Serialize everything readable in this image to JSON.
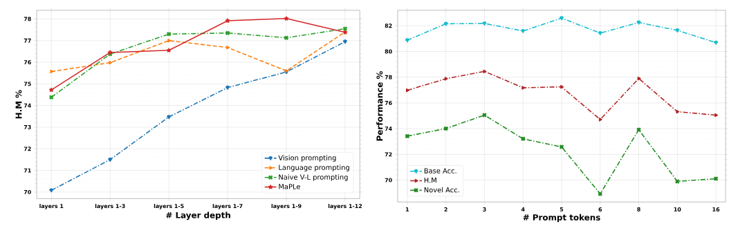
{
  "chart_data": [
    {
      "type": "line",
      "xlabel": "# Layer depth",
      "ylabel": "H.M %",
      "categories": [
        "layers 1",
        "layers 1-3",
        "layers 1-5",
        "layers 1-7",
        "layers 1-9",
        "layers 1-12"
      ],
      "series": [
        {
          "name": "Vision prompting",
          "color": "#1f77b4",
          "marker": "circle",
          "line_style": "dashdot",
          "values": [
            70.08,
            71.5,
            73.47,
            74.83,
            75.55,
            76.95
          ]
        },
        {
          "name": "Language prompting",
          "color": "#ff7f0e",
          "marker": "triangle",
          "line_style": "dashed",
          "values": [
            75.57,
            75.98,
            77.0,
            76.68,
            75.6,
            77.4
          ]
        },
        {
          "name": "Naive V-L prompting",
          "color": "#2ca02c",
          "marker": "cross",
          "line_style": "dashdot",
          "values": [
            74.38,
            76.38,
            77.3,
            77.35,
            77.13,
            77.55
          ]
        },
        {
          "name": "MaPLe",
          "color": "#d62728",
          "marker": "star",
          "line_style": "solid",
          "values": [
            74.72,
            76.45,
            76.55,
            77.92,
            78.02,
            77.38
          ]
        }
      ],
      "ylim": [
        69.7,
        78.4
      ],
      "yticks": [
        70,
        71,
        72,
        73,
        74,
        75,
        76,
        77,
        78
      ],
      "grid": true,
      "legend": "bottom right"
    },
    {
      "type": "line",
      "xlabel": "# Prompt tokens",
      "ylabel": "Performance %",
      "categories": [
        "1",
        "2",
        "3",
        "4",
        "5",
        "6",
        "8",
        "10",
        "16"
      ],
      "series": [
        {
          "name": "Base Acc.",
          "color": "#17becf",
          "marker": "circle",
          "line_style": "dashdot",
          "values": [
            80.87,
            82.15,
            82.18,
            81.59,
            82.59,
            81.43,
            82.25,
            81.64,
            80.69
          ]
        },
        {
          "name": "H.M",
          "color": "#b22222",
          "marker": "triangle",
          "line_style": "dashdot",
          "values": [
            76.98,
            77.88,
            78.45,
            77.18,
            77.25,
            74.71,
            77.9,
            75.32,
            75.05
          ]
        },
        {
          "name": "Novel Acc.",
          "color": "#228b22",
          "marker": "cross",
          "line_style": "dashdot",
          "values": [
            73.42,
            74.01,
            75.05,
            73.21,
            72.58,
            68.93,
            73.92,
            69.9,
            70.11
          ]
        }
      ],
      "ylim": [
        68.3,
        83.2
      ],
      "yticks": [
        70,
        72,
        74,
        76,
        78,
        80,
        82
      ],
      "grid": true,
      "legend": "bottom left"
    }
  ]
}
